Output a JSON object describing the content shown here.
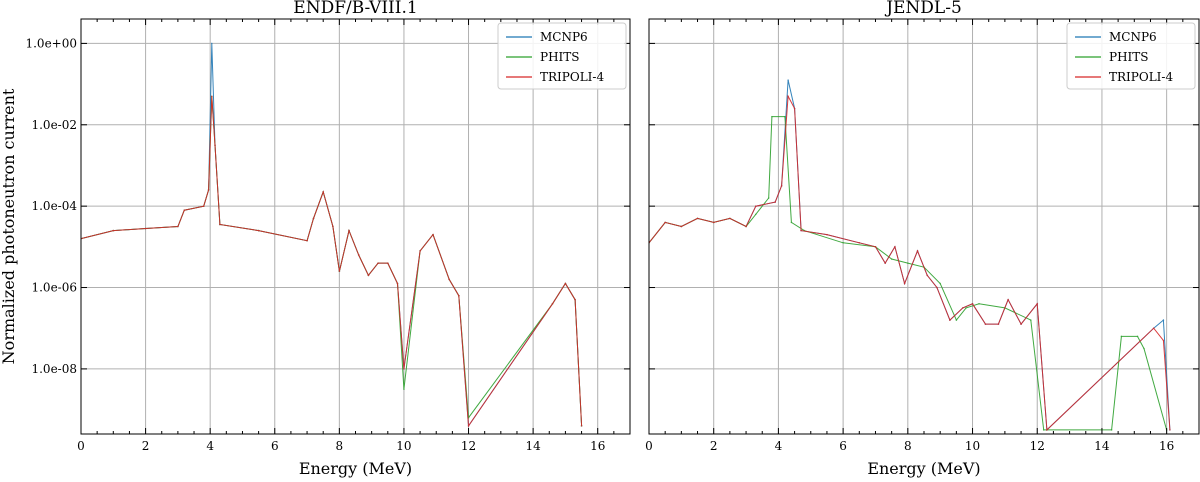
{
  "chart_data": [
    {
      "type": "line",
      "title": "ENDF/B-VIII.1",
      "xlabel": "Energy (MeV)",
      "ylabel": "Normalized photoneutron current",
      "xlim": [
        0,
        17
      ],
      "ylim_log10": [
        -9.6,
        0.6
      ],
      "x_ticks": [
        0,
        2,
        4,
        6,
        8,
        10,
        12,
        14,
        16
      ],
      "x_tick_labels": [
        "0",
        "2",
        "4",
        "6",
        "8",
        "10",
        "12",
        "14",
        "16"
      ],
      "y_ticks_log10": [
        0,
        -2,
        -4,
        -6,
        -8
      ],
      "y_tick_labels": [
        "1.0e+00",
        "1.0e-02",
        "1.0e-04",
        "1.0e-06",
        "1.0e-08"
      ],
      "grid": true,
      "legend": "top-right",
      "series": [
        {
          "name": "MCNP6",
          "color": "#1f77b4",
          "x": [
            0.0,
            1.0,
            2.0,
            3.0,
            3.2,
            3.8,
            3.95,
            4.05,
            4.15,
            4.3,
            5.5,
            7.0,
            7.2,
            7.5,
            7.8,
            8.0,
            8.3,
            8.6,
            8.9,
            9.2,
            9.5,
            9.8,
            10.0,
            10.5,
            10.9,
            11.4,
            11.7,
            12.0,
            14.6,
            15.0,
            15.3,
            15.5
          ],
          "log10_y": [
            -4.8,
            -4.6,
            -4.55,
            -4.5,
            -4.1,
            -4.0,
            -3.6,
            0.0,
            -2.5,
            -4.45,
            -4.6,
            -4.85,
            -4.3,
            -3.65,
            -4.5,
            -5.6,
            -4.6,
            -5.2,
            -5.7,
            -5.4,
            -5.4,
            -5.9,
            -8.0,
            -5.1,
            -4.7,
            -5.8,
            -6.2,
            -9.4,
            -6.4,
            -5.9,
            -6.3,
            -9.4
          ]
        },
        {
          "name": "PHITS",
          "color": "#2ca02c",
          "x": [
            0.0,
            1.0,
            2.0,
            3.0,
            3.2,
            3.8,
            3.95,
            4.05,
            4.15,
            4.3,
            5.5,
            7.0,
            7.2,
            7.5,
            7.8,
            8.0,
            8.3,
            8.6,
            8.9,
            9.2,
            9.5,
            9.8,
            10.0,
            10.5,
            10.9,
            11.4,
            11.7,
            12.0,
            14.6,
            15.0,
            15.3,
            15.5
          ],
          "log10_y": [
            -4.8,
            -4.6,
            -4.55,
            -4.5,
            -4.1,
            -4.0,
            -3.6,
            -1.3,
            -2.5,
            -4.45,
            -4.6,
            -4.85,
            -4.3,
            -3.65,
            -4.5,
            -5.6,
            -4.6,
            -5.2,
            -5.7,
            -5.4,
            -5.4,
            -5.9,
            -8.5,
            -5.1,
            -4.7,
            -5.8,
            -6.2,
            -9.2,
            -6.4,
            -5.9,
            -6.3,
            -9.4
          ]
        },
        {
          "name": "TRIPOLI-4",
          "color": "#d62728",
          "x": [
            0.0,
            1.0,
            2.0,
            3.0,
            3.2,
            3.8,
            3.95,
            4.05,
            4.15,
            4.3,
            5.5,
            7.0,
            7.2,
            7.5,
            7.8,
            8.0,
            8.3,
            8.6,
            8.9,
            9.2,
            9.5,
            9.8,
            10.0,
            10.5,
            10.9,
            11.4,
            11.7,
            12.0,
            14.6,
            15.0,
            15.3,
            15.5
          ],
          "log10_y": [
            -4.8,
            -4.6,
            -4.55,
            -4.5,
            -4.1,
            -4.0,
            -3.6,
            -1.3,
            -2.5,
            -4.45,
            -4.6,
            -4.85,
            -4.3,
            -3.65,
            -4.5,
            -5.6,
            -4.6,
            -5.2,
            -5.7,
            -5.4,
            -5.4,
            -5.9,
            -8.0,
            -5.1,
            -4.7,
            -5.8,
            -6.2,
            -9.4,
            -6.4,
            -5.9,
            -6.3,
            -9.4
          ]
        }
      ]
    },
    {
      "type": "line",
      "title": "JENDL-5",
      "xlabel": "Energy (MeV)",
      "ylabel": "",
      "xlim": [
        0,
        17
      ],
      "ylim_log10": [
        -9.6,
        0.6
      ],
      "x_ticks": [
        0,
        2,
        4,
        6,
        8,
        10,
        12,
        14,
        16
      ],
      "x_tick_labels": [
        "0",
        "2",
        "4",
        "6",
        "8",
        "10",
        "12",
        "14",
        "16"
      ],
      "y_ticks_log10": [
        0,
        -2,
        -4,
        -6,
        -8
      ],
      "y_tick_labels": [
        "",
        "",
        "",
        "",
        ""
      ],
      "grid": true,
      "legend": "top-right",
      "series": [
        {
          "name": "MCNP6",
          "color": "#1f77b4",
          "x": [
            0.0,
            0.5,
            1.0,
            1.5,
            2.0,
            2.5,
            3.0,
            3.3,
            3.9,
            4.1,
            4.3,
            4.5,
            4.7,
            5.5,
            6.5,
            7.0,
            7.3,
            7.6,
            7.9,
            8.3,
            8.6,
            8.9,
            9.3,
            9.7,
            10.0,
            10.4,
            10.8,
            11.1,
            11.5,
            12.0,
            12.3,
            15.6,
            15.9,
            16.1
          ],
          "log10_y": [
            -4.9,
            -4.4,
            -4.5,
            -4.3,
            -4.4,
            -4.3,
            -4.5,
            -4.0,
            -3.9,
            -3.5,
            -0.9,
            -1.6,
            -4.6,
            -4.7,
            -4.9,
            -5.0,
            -5.4,
            -5.0,
            -5.9,
            -5.1,
            -5.7,
            -6.0,
            -6.8,
            -6.5,
            -6.4,
            -6.9,
            -6.9,
            -6.3,
            -6.9,
            -6.4,
            -9.5,
            -7.0,
            -6.8,
            -9.5
          ]
        },
        {
          "name": "PHITS",
          "color": "#2ca02c",
          "x": [
            0.0,
            0.5,
            1.0,
            1.5,
            2.0,
            2.5,
            3.0,
            3.3,
            3.7,
            3.8,
            4.2,
            4.4,
            4.8,
            6.0,
            7.0,
            7.5,
            8.0,
            8.5,
            9.0,
            9.5,
            9.8,
            10.2,
            11.0,
            11.8,
            12.2,
            14.3,
            14.6,
            15.1,
            15.3,
            16.0
          ],
          "log10_y": [
            -4.9,
            -4.4,
            -4.5,
            -4.3,
            -4.4,
            -4.3,
            -4.5,
            -4.2,
            -3.8,
            -1.8,
            -1.8,
            -4.4,
            -4.6,
            -4.9,
            -5.0,
            -5.3,
            -5.4,
            -5.5,
            -5.9,
            -6.8,
            -6.5,
            -6.4,
            -6.5,
            -6.8,
            -9.5,
            -9.5,
            -7.2,
            -7.2,
            -7.5,
            -9.5
          ]
        },
        {
          "name": "TRIPOLI-4",
          "color": "#d62728",
          "x": [
            0.0,
            0.5,
            1.0,
            1.5,
            2.0,
            2.5,
            3.0,
            3.3,
            3.9,
            4.1,
            4.3,
            4.5,
            4.7,
            5.5,
            6.5,
            7.0,
            7.3,
            7.6,
            7.9,
            8.3,
            8.6,
            8.9,
            9.3,
            9.7,
            10.0,
            10.4,
            10.8,
            11.1,
            11.5,
            12.0,
            12.3,
            15.6,
            15.9,
            16.1
          ],
          "log10_y": [
            -4.9,
            -4.4,
            -4.5,
            -4.3,
            -4.4,
            -4.3,
            -4.5,
            -4.0,
            -3.9,
            -3.5,
            -1.3,
            -1.6,
            -4.6,
            -4.7,
            -4.9,
            -5.0,
            -5.4,
            -5.0,
            -5.9,
            -5.1,
            -5.7,
            -6.0,
            -6.8,
            -6.5,
            -6.4,
            -6.9,
            -6.9,
            -6.3,
            -6.9,
            -6.4,
            -9.5,
            -7.0,
            -7.3,
            -9.5
          ]
        }
      ]
    }
  ]
}
